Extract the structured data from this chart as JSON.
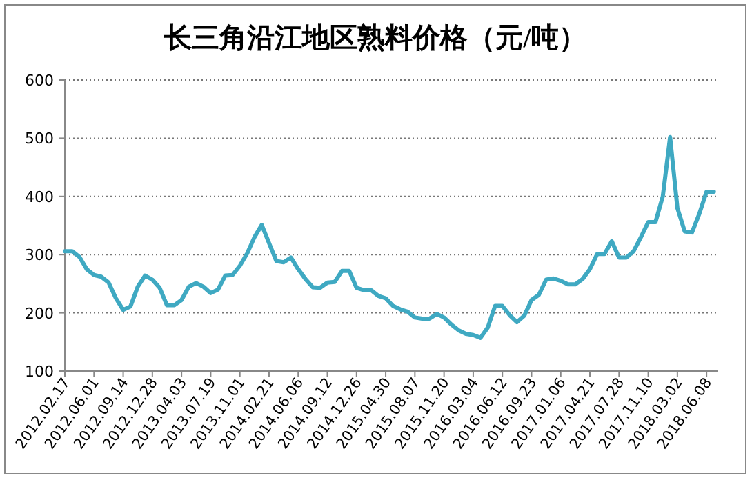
{
  "chart_data": {
    "type": "line",
    "title": "长三角沿江地区熟料价格（元/吨）",
    "categories": [
      "2012.02.17",
      null,
      null,
      null,
      "2012.06.01",
      null,
      null,
      null,
      "2012.09.14",
      null,
      null,
      null,
      "2012.12.28",
      null,
      null,
      null,
      "2013.04.03",
      null,
      null,
      null,
      "2013.07.19",
      null,
      null,
      null,
      "2013.11.01",
      null,
      null,
      null,
      "2014.02.21",
      null,
      null,
      null,
      "2014.06.06",
      null,
      null,
      null,
      "2014.09.12",
      null,
      null,
      null,
      "2014.12.26",
      null,
      null,
      null,
      "2015.04.30",
      null,
      null,
      null,
      "2015.08.07",
      null,
      null,
      null,
      "2015.11.20",
      null,
      null,
      null,
      "2016.03.04",
      null,
      null,
      null,
      "2016.06.12",
      null,
      null,
      null,
      "2016.09.23",
      null,
      null,
      null,
      "2017.01.06",
      null,
      null,
      null,
      "2017.04.21",
      null,
      null,
      null,
      "2017.07.28",
      null,
      null,
      null,
      "2017.11.10",
      null,
      null,
      null,
      "2018.03.02",
      null,
      null,
      null,
      "2018.06.08",
      null
    ],
    "series": [
      {
        "color": "#3fa9c2",
        "values": [
          306,
          306,
          296,
          275,
          265,
          262,
          252,
          225,
          205,
          211,
          245,
          264,
          257,
          243,
          213,
          213,
          222,
          245,
          251,
          245,
          234,
          240,
          264,
          265,
          281,
          302,
          330,
          351,
          320,
          289,
          287,
          295,
          275,
          258,
          244,
          243,
          252,
          253,
          272,
          272,
          243,
          239,
          239,
          229,
          225,
          212,
          206,
          202,
          192,
          190,
          190,
          198,
          192,
          180,
          170,
          164,
          162,
          157,
          175,
          212,
          212,
          196,
          184,
          195,
          222,
          231,
          257,
          259,
          255,
          249,
          249,
          258,
          275,
          301,
          301,
          323,
          295,
          295,
          306,
          330,
          356,
          356,
          400,
          502,
          380,
          340,
          338,
          370,
          408,
          408
        ]
      }
    ],
    "ylim": [
      100,
      600
    ],
    "yticks": [
      100,
      200,
      300,
      400,
      500,
      600
    ],
    "grid": "y",
    "line_style": "solid"
  }
}
